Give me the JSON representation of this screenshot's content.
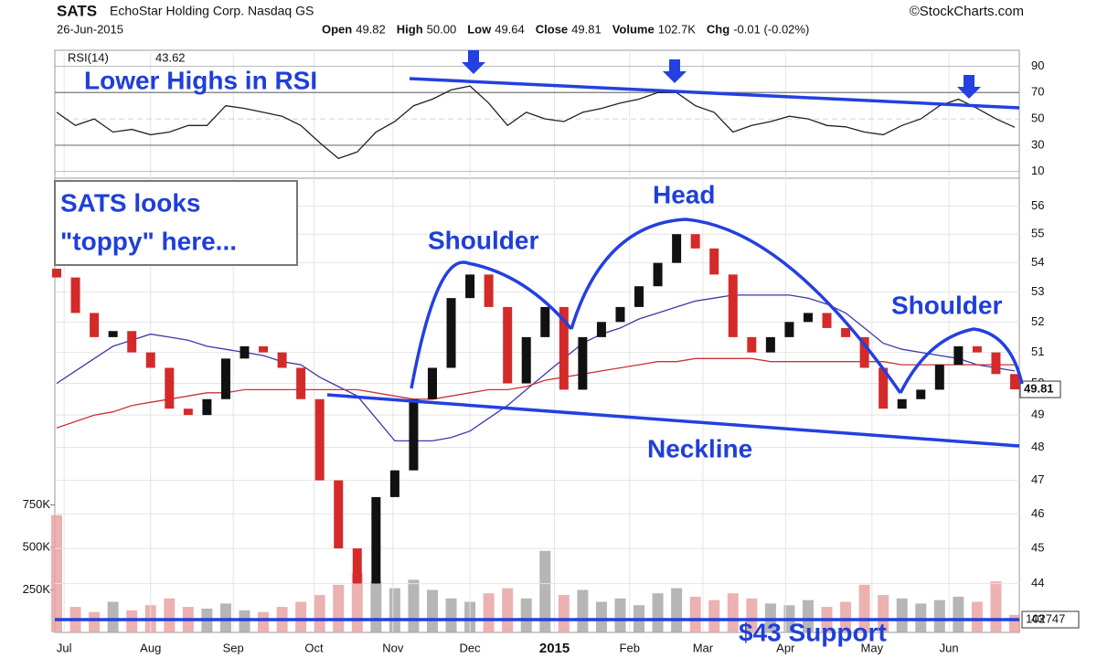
{
  "header": {
    "symbol": "SATS",
    "name": "EchoStar Holding Corp. Nasdaq GS",
    "source": "©StockCharts.com",
    "date": "26-Jun-2015",
    "quote": [
      {
        "label": "Open",
        "value": "49.82"
      },
      {
        "label": "High",
        "value": "50.00"
      },
      {
        "label": "Low",
        "value": "49.64"
      },
      {
        "label": "Close",
        "value": "49.81"
      },
      {
        "label": "Volume",
        "value": "102.7K"
      },
      {
        "label": "Chg",
        "value": "-0.01 (-0.02%)"
      }
    ]
  },
  "annotations": {
    "rsi": "Lower Highs in RSI",
    "toppy": [
      "SATS looks",
      "\"toppy\" here..."
    ],
    "left_shoulder": "Shoulder",
    "head": "Head",
    "right_shoulder": "Shoulder",
    "neckline": "Neckline",
    "support": "$43 Support"
  },
  "chart_data": [
    {
      "type": "line",
      "series": [
        {
          "name": "RSI(14)",
          "color": "#222222",
          "values": [
            55,
            45,
            50,
            40,
            42,
            38,
            40,
            45,
            45,
            60,
            58,
            55,
            52,
            45,
            32,
            20,
            25,
            40,
            48,
            60,
            65,
            72,
            75,
            62,
            45,
            55,
            50,
            48,
            55,
            58,
            62,
            65,
            70,
            70,
            60,
            55,
            40,
            45,
            48,
            52,
            50,
            45,
            44,
            40,
            38,
            45,
            50,
            60,
            65,
            58,
            50,
            43.62
          ]
        }
      ],
      "xlim": [
        0,
        51
      ],
      "ylim": [
        5,
        100
      ],
      "yticks": [
        10,
        30,
        50,
        70,
        90
      ]
    },
    {
      "type": "candlestick",
      "log": true,
      "grid": true,
      "xlim": [
        0,
        51
      ],
      "ylim": [
        42.65,
        57
      ],
      "yticks": [
        43,
        44,
        45,
        46,
        47,
        48,
        49,
        50,
        51,
        52,
        53,
        54,
        55,
        56
      ],
      "xticks": [
        {
          "value": 0.4,
          "label": "Jul"
        },
        {
          "value": 5,
          "label": "Aug"
        },
        {
          "value": 9.4,
          "label": "Sep"
        },
        {
          "value": 13.7,
          "label": "Oct"
        },
        {
          "value": 17.9,
          "label": "Nov"
        },
        {
          "value": 22,
          "label": "Dec"
        },
        {
          "value": 26.5,
          "label": "2015"
        },
        {
          "value": 30.5,
          "label": "Feb"
        },
        {
          "value": 34.4,
          "label": "Mar"
        },
        {
          "value": 38.8,
          "label": "Apr"
        },
        {
          "value": 43.4,
          "label": "May"
        },
        {
          "value": 47.5,
          "label": "Jun"
        }
      ],
      "up_color": "#111111",
      "down_color": "#d42a2a",
      "open": [
        53.8,
        53.5,
        52.3,
        51.5,
        51.7,
        51.0,
        50.5,
        49.2,
        49.0,
        49.5,
        50.8,
        51.2,
        51.0,
        50.5,
        49.5,
        47.0,
        45.0,
        44.0,
        46.5,
        47.3,
        49.5,
        50.5,
        52.8,
        53.6,
        52.5,
        50.0,
        51.5,
        52.5,
        49.8,
        51.5,
        52.0,
        52.5,
        53.2,
        54.0,
        55.0,
        54.5,
        53.6,
        51.5,
        51.0,
        51.5,
        52.0,
        52.3,
        51.8,
        51.5,
        50.5,
        49.2,
        49.5,
        49.8,
        50.6,
        51.2,
        51.0,
        50.3
      ],
      "close": [
        53.5,
        52.3,
        51.5,
        51.7,
        51.0,
        50.5,
        49.2,
        49.0,
        49.5,
        50.8,
        51.2,
        51.0,
        50.5,
        49.5,
        47.0,
        45.0,
        44.0,
        46.5,
        47.3,
        49.5,
        50.5,
        52.8,
        53.6,
        52.5,
        50.0,
        51.5,
        52.5,
        49.8,
        51.5,
        52.0,
        52.5,
        53.2,
        54.0,
        55.0,
        54.5,
        53.6,
        51.5,
        51.0,
        51.5,
        52.0,
        52.3,
        51.8,
        51.5,
        50.5,
        49.2,
        49.5,
        49.8,
        50.6,
        51.2,
        51.0,
        50.3,
        49.81
      ],
      "overlays": [
        {
          "color": "#3a3aa8",
          "values": [
            50.0,
            50.4,
            50.8,
            51.2,
            51.4,
            51.6,
            51.5,
            51.4,
            51.2,
            51.1,
            51.0,
            50.9,
            50.7,
            50.6,
            50.2,
            49.9,
            49.6,
            48.9,
            48.2,
            48.2,
            48.2,
            48.3,
            48.5,
            48.9,
            49.3,
            49.8,
            50.3,
            50.8,
            51.3,
            51.6,
            51.8,
            52.1,
            52.3,
            52.5,
            52.7,
            52.8,
            52.9,
            52.9,
            52.9,
            52.9,
            52.8,
            52.6,
            52.3,
            51.8,
            51.3,
            51.1,
            51.0,
            50.9,
            50.8,
            50.6,
            50.5,
            50.4
          ]
        },
        {
          "color": "#cc3333",
          "values": [
            48.6,
            48.8,
            49.0,
            49.1,
            49.3,
            49.4,
            49.5,
            49.6,
            49.7,
            49.7,
            49.8,
            49.8,
            49.8,
            49.8,
            49.8,
            49.8,
            49.8,
            49.7,
            49.6,
            49.5,
            49.5,
            49.6,
            49.7,
            49.8,
            49.8,
            49.9,
            50.1,
            50.2,
            50.3,
            50.4,
            50.5,
            50.6,
            50.7,
            50.7,
            50.8,
            50.8,
            50.8,
            50.8,
            50.7,
            50.7,
            50.7,
            50.7,
            50.7,
            50.7,
            50.7,
            50.6,
            50.6,
            50.6,
            50.6,
            50.6,
            50.6,
            50.6
          ]
        }
      ]
    },
    {
      "type": "bar",
      "xlim": [
        0,
        51
      ],
      "ylim": [
        0,
        1000000
      ],
      "yticks": [
        {
          "value": 250000,
          "label": "250K"
        },
        {
          "value": 500000,
          "label": "500K"
        },
        {
          "value": 750000,
          "label": "750K"
        }
      ],
      "up_color": "#a9a9a9",
      "down_color": "#e9a3a3",
      "values": [
        690000,
        150000,
        120000,
        180000,
        130000,
        160000,
        200000,
        150000,
        140000,
        170000,
        130000,
        120000,
        150000,
        180000,
        220000,
        280000,
        350000,
        300000,
        260000,
        310000,
        250000,
        200000,
        180000,
        230000,
        260000,
        200000,
        480000,
        220000,
        250000,
        180000,
        200000,
        160000,
        230000,
        260000,
        210000,
        190000,
        230000,
        200000,
        170000,
        160000,
        190000,
        150000,
        180000,
        280000,
        220000,
        200000,
        170000,
        190000,
        210000,
        180000,
        300000,
        102747
      ]
    }
  ]
}
